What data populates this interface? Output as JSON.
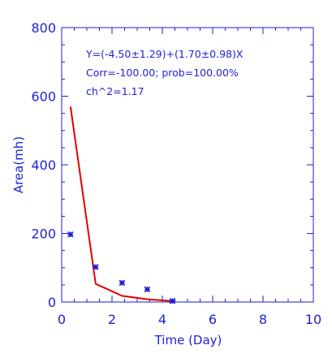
{
  "chart_data": {
    "type": "scatter",
    "title": "",
    "xlabel": "Time (Day)",
    "ylabel": "Area(mh)",
    "xlim": [
      0,
      10
    ],
    "ylim": [
      0,
      800
    ],
    "x_ticks": [
      "0",
      "2",
      "4",
      "6",
      "8",
      "10"
    ],
    "y_ticks": [
      "0",
      "200",
      "400",
      "600",
      "800"
    ],
    "grid": false,
    "series": [
      {
        "kind": "scatter",
        "marker": "asterisk",
        "color": "#1f1fd6",
        "x": [
          0.35,
          1.35,
          2.4,
          3.4,
          4.4
        ],
        "y": [
          197,
          102,
          56,
          37,
          3
        ]
      },
      {
        "kind": "line",
        "color": "#e00000",
        "x": [
          0.35,
          1.35,
          2.4,
          3.4,
          4.4
        ],
        "y": [
          570,
          53,
          18,
          8,
          3
        ]
      }
    ],
    "annotations": [
      "Y=(-4.50±1.29)+(1.70±0.98)X",
      "Corr=-100.00;  prob=100.00%",
      "ch^2=1.17"
    ]
  }
}
